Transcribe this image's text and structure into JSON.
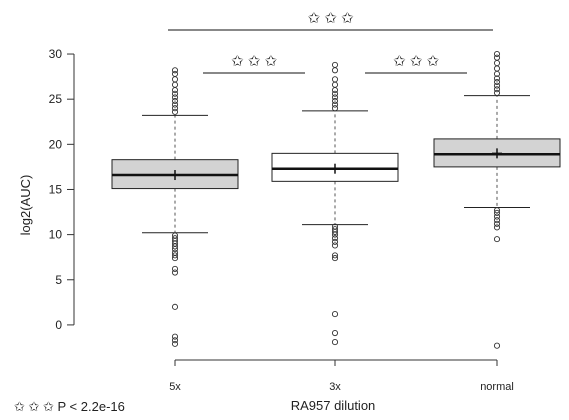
{
  "chart_data": {
    "type": "boxplot",
    "xlabel": "RA957 dilution",
    "ylabel": "log2(AUC)",
    "ylim": [
      -3,
      31
    ],
    "y_ticks": [
      0,
      5,
      10,
      15,
      20,
      25,
      30
    ],
    "categories": [
      "5x",
      "3x",
      "normal"
    ],
    "boxes": [
      {
        "category": "5x",
        "fill": "#d3d3d3",
        "q1": 15.1,
        "median": 16.6,
        "q3": 18.3,
        "whisker_low": 10.2,
        "whisker_high": 23.2,
        "mean": 16.6,
        "outliers_low": [
          9.9,
          9.6,
          9.3,
          9.0,
          8.7,
          8.4,
          8.0,
          7.7,
          7.4,
          6.2,
          5.8,
          2.0,
          -1.3,
          -1.7,
          -2.1
        ],
        "outliers_high": [
          23.6,
          24.0,
          24.4,
          24.8,
          25.2,
          25.6,
          26.0,
          26.6,
          27.2,
          27.8,
          28.2
        ]
      },
      {
        "category": "3x",
        "fill": "#ffffff",
        "q1": 15.9,
        "median": 17.3,
        "q3": 19.0,
        "whisker_low": 11.1,
        "whisker_high": 23.7,
        "mean": 17.3,
        "outliers_low": [
          10.9,
          10.6,
          10.3,
          10.0,
          9.6,
          9.2,
          8.8,
          7.7,
          7.4,
          1.2,
          -0.9,
          -1.9
        ],
        "outliers_high": [
          24.0,
          24.4,
          24.8,
          25.2,
          25.6,
          26.0,
          26.6,
          27.2,
          28.2,
          28.8
        ]
      },
      {
        "category": "normal",
        "fill": "#d3d3d3",
        "q1": 17.5,
        "median": 18.9,
        "q3": 20.6,
        "whisker_low": 13.0,
        "whisker_high": 25.4,
        "mean": 19.0,
        "outliers_low": [
          12.7,
          12.4,
          12.0,
          11.6,
          11.2,
          10.8,
          9.5,
          -2.3
        ],
        "outliers_high": [
          25.7,
          26.1,
          26.5,
          26.9,
          27.3,
          27.8,
          28.4,
          29.0,
          29.6,
          30.0
        ]
      }
    ],
    "significance": [
      {
        "from": "5x",
        "to": "normal",
        "label": "✩ ✩ ✩"
      },
      {
        "from": "5x",
        "to": "3x",
        "label": "✩ ✩ ✩"
      },
      {
        "from": "3x",
        "to": "normal",
        "label": "✩ ✩ ✩"
      }
    ],
    "footnote": "✩ ✩ ✩ P < 2.2e-16"
  }
}
